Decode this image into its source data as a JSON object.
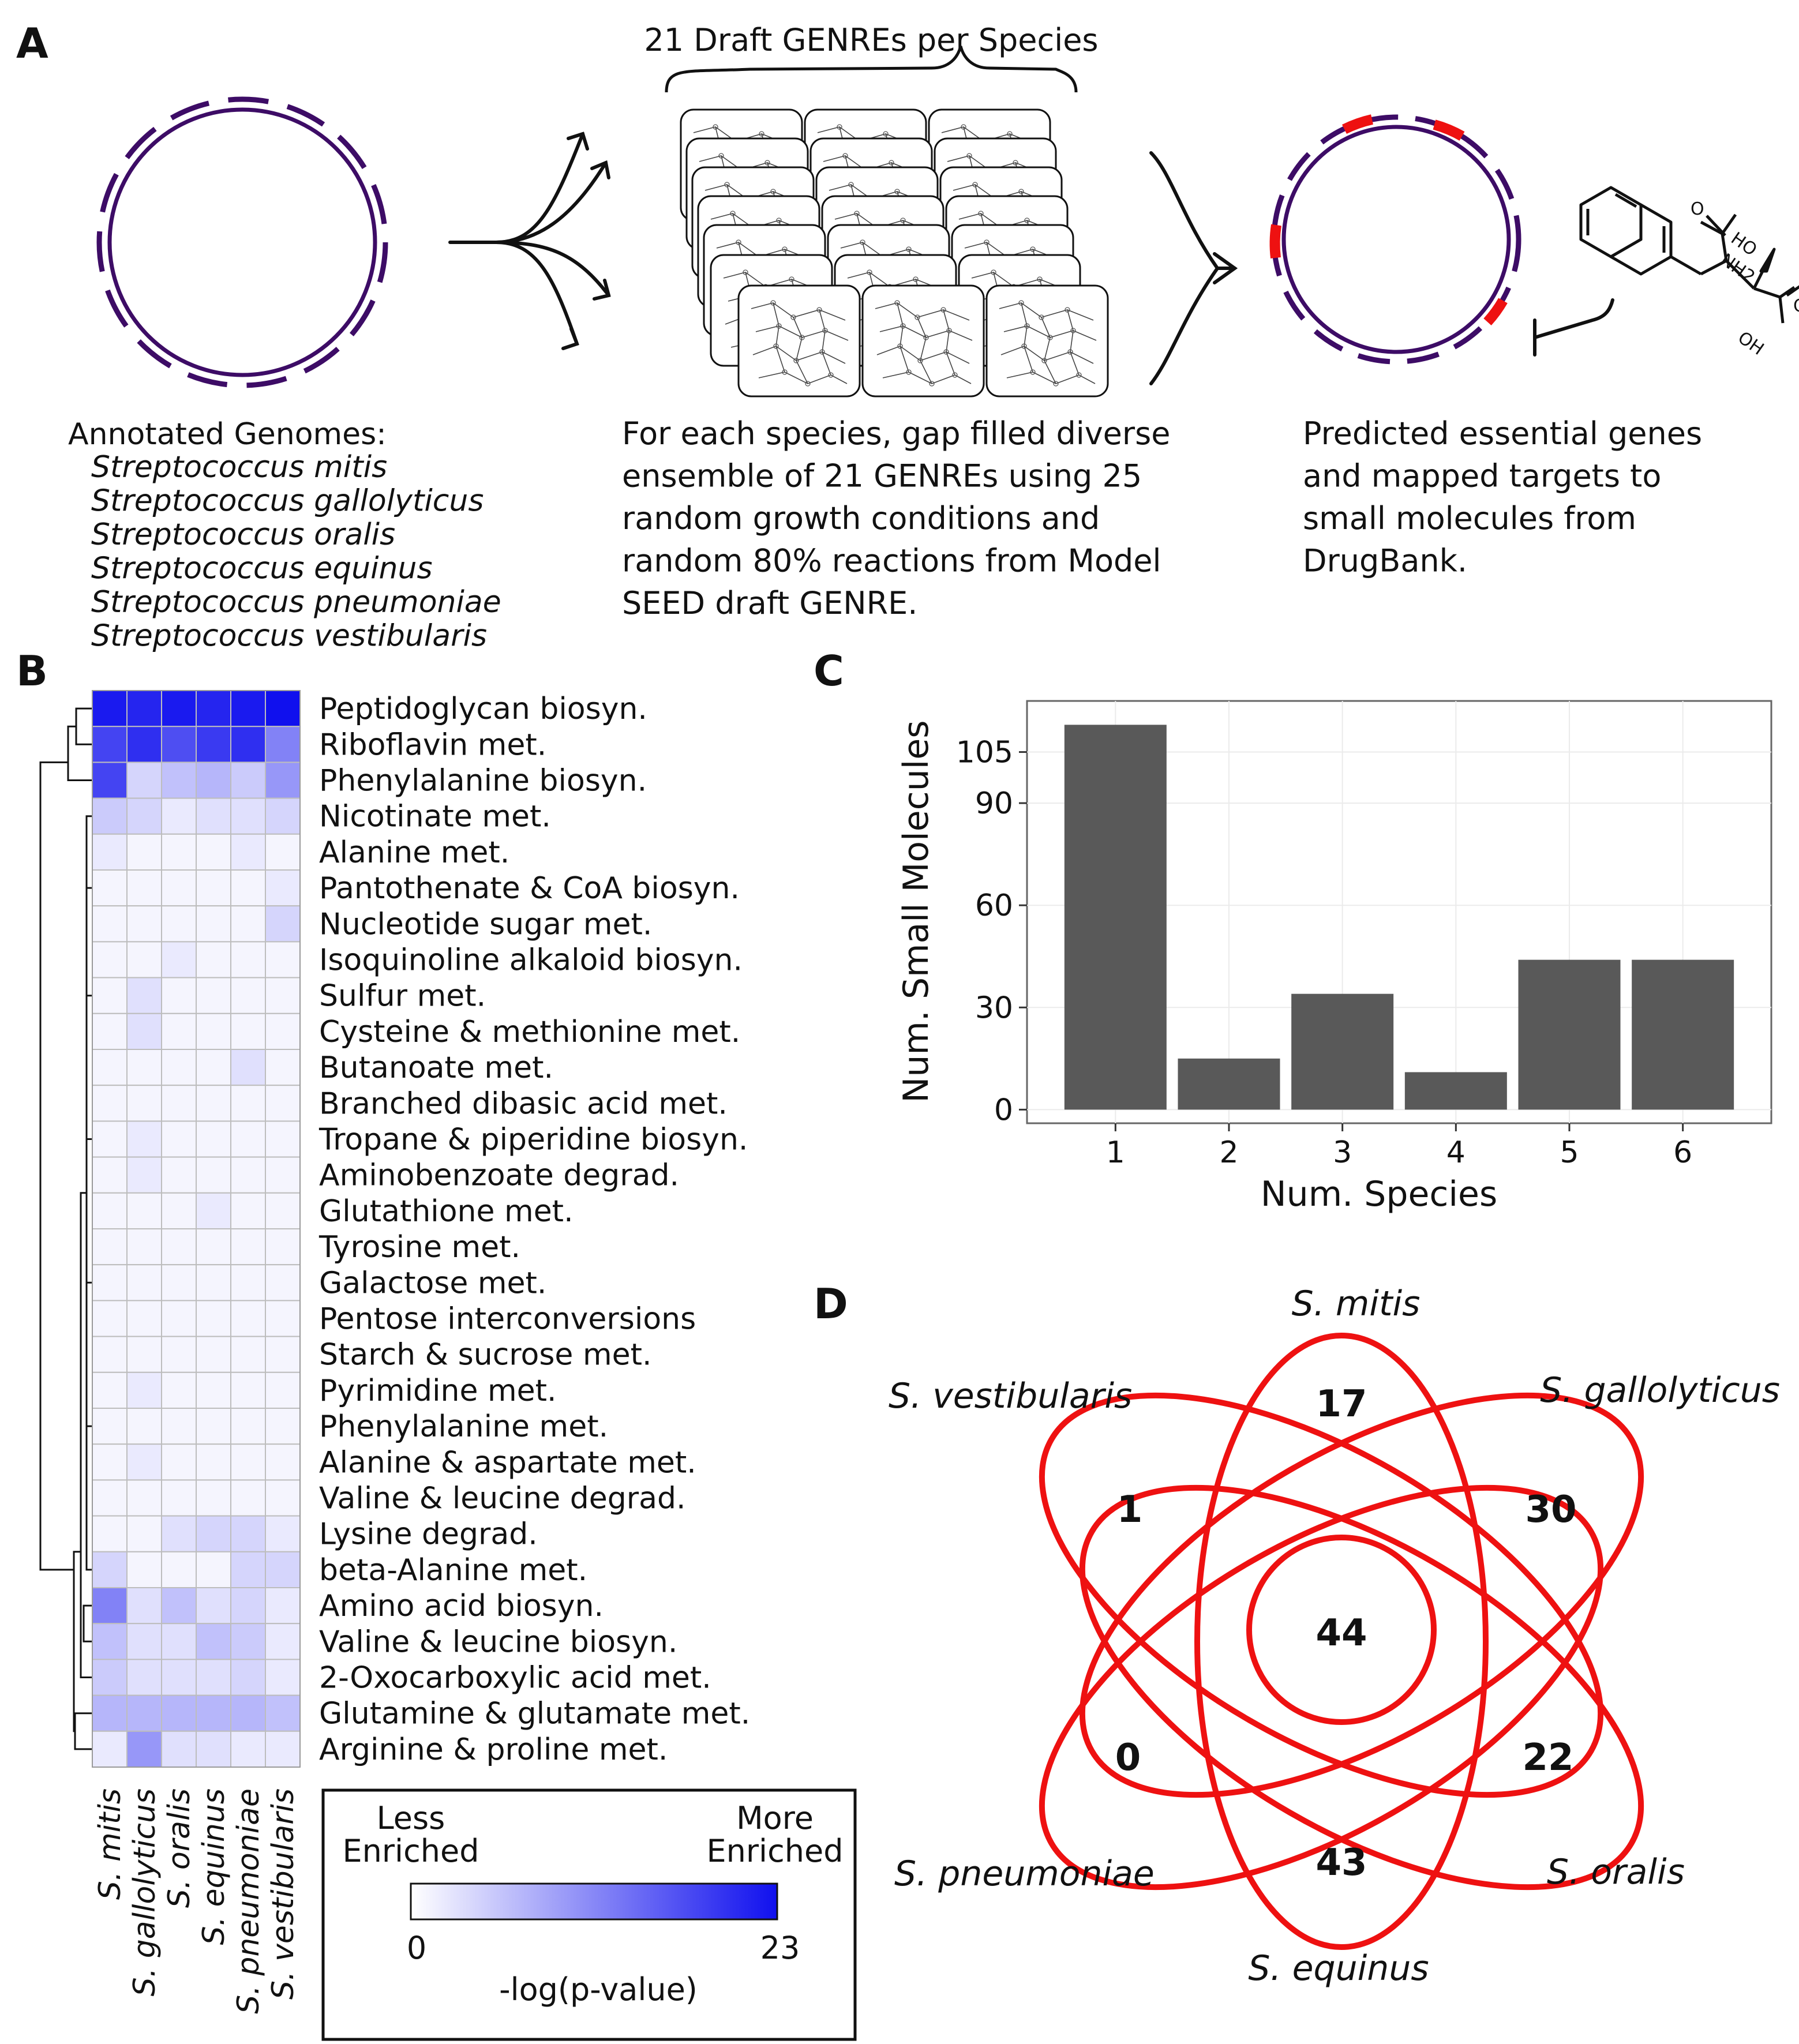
{
  "panel_labels": {
    "a": "A",
    "b": "B",
    "c": "C",
    "d": "D"
  },
  "panel_a": {
    "bracket_title": "21 Draft GENREs per Species",
    "genomes_heading": "Annotated Genomes:",
    "genome_list": [
      "Streptococcus mitis",
      "Streptococcus gallolyticus",
      "Streptococcus oralis",
      "Streptococcus equinus",
      "Streptococcus pneumoniae",
      "Streptococcus vestibularis"
    ],
    "method_text": [
      "For each species, gap filled diverse",
      "ensemble of 21 GENREs using 25",
      "random growth conditions and",
      "random 80% reactions from Model",
      "SEED draft GENRE."
    ],
    "result_text": [
      "Predicted essential genes",
      "and mapped targets to",
      "small molecules from",
      "DrugBank."
    ],
    "molecule_labels": {
      "ho": "HO",
      "nh2": "NH2",
      "oh": "OH"
    },
    "colors": {
      "genome": "#3d0c66",
      "essential": "#ee1111",
      "arrow": "#111111"
    }
  },
  "panel_b": {
    "pathways": [
      "Peptidoglycan biosyn.",
      "Riboflavin met.",
      "Phenylalanine biosyn.",
      "Nicotinate met.",
      "Alanine met.",
      "Pantothenate & CoA biosyn.",
      "Nucleotide sugar met.",
      "Isoquinoline alkaloid biosyn.",
      "Sulfur met.",
      "Cysteine & methionine met.",
      "Butanoate met.",
      "Branched dibasic acid met.",
      "Tropane & piperidine biosyn.",
      "Aminobenzoate degrad.",
      "Glutathione met.",
      "Tyrosine met.",
      "Galactose met.",
      "Pentose interconversions",
      "Starch & sucrose met.",
      "Pyrimidine met.",
      "Phenylalanine met.",
      "Alanine & aspartate met.",
      "Valine & leucine degrad.",
      "Lysine degrad.",
      "beta-Alanine met.",
      "Amino acid biosyn.",
      "Valine & leucine biosyn.",
      "2-Oxocarboxylic acid met.",
      "Glutamine & glutamate met.",
      "Arginine & proline met."
    ],
    "species": [
      "S. mitis",
      "S. gallolyticus",
      "S. oralis",
      "S. equinus",
      "S. pneumoniae",
      "S. vestibularis"
    ],
    "values": [
      [
        22,
        21,
        22,
        21,
        22,
        23
      ],
      [
        18,
        20,
        17,
        19,
        20,
        12
      ],
      [
        18,
        4,
        6,
        7,
        5,
        10
      ],
      [
        5,
        4,
        2,
        3,
        3,
        4
      ],
      [
        2,
        1,
        1,
        1,
        2,
        1
      ],
      [
        1,
        1,
        1,
        1,
        1,
        2
      ],
      [
        1,
        1,
        1,
        1,
        1,
        4
      ],
      [
        1,
        1,
        2,
        1,
        1,
        1
      ],
      [
        1,
        3,
        1,
        1,
        1,
        1
      ],
      [
        1,
        3,
        1,
        1,
        1,
        1
      ],
      [
        1,
        1,
        1,
        1,
        3,
        1
      ],
      [
        1,
        1,
        1,
        1,
        1,
        1
      ],
      [
        1,
        2,
        1,
        1,
        1,
        1
      ],
      [
        1,
        2,
        1,
        1,
        1,
        1
      ],
      [
        1,
        1,
        1,
        2,
        1,
        1
      ],
      [
        1,
        1,
        1,
        1,
        1,
        1
      ],
      [
        1,
        1,
        1,
        1,
        1,
        1
      ],
      [
        1,
        1,
        1,
        1,
        1,
        1
      ],
      [
        1,
        1,
        1,
        1,
        1,
        1
      ],
      [
        1,
        2,
        1,
        1,
        1,
        1
      ],
      [
        1,
        1,
        1,
        1,
        1,
        1
      ],
      [
        1,
        2,
        1,
        1,
        1,
        1
      ],
      [
        1,
        1,
        1,
        1,
        1,
        1
      ],
      [
        1,
        1,
        3,
        4,
        4,
        2
      ],
      [
        4,
        1,
        1,
        1,
        4,
        4
      ],
      [
        12,
        3,
        6,
        3,
        4,
        2
      ],
      [
        6,
        3,
        3,
        6,
        5,
        2
      ],
      [
        5,
        3,
        3,
        3,
        4,
        2
      ],
      [
        7,
        7,
        7,
        7,
        7,
        6
      ],
      [
        2,
        10,
        3,
        3,
        2,
        2
      ]
    ],
    "color_scale": {
      "min": 0,
      "max": 23,
      "low": "#ffffff",
      "high": "#1010ee"
    },
    "legend": {
      "less_line1": "Less",
      "less_line2": "Enriched",
      "more_line1": "More",
      "more_line2": "Enriched",
      "tick_min": "0",
      "tick_max": "23",
      "title": "-log(p-value)"
    }
  },
  "chart_data": [
    {
      "type": "bar",
      "categories": [
        "1",
        "2",
        "3",
        "4",
        "5",
        "6"
      ],
      "values": [
        113,
        15,
        34,
        11,
        44,
        44
      ],
      "xlabel": "Num. Species",
      "ylabel": "Num. Small Molecules",
      "yticks": [
        0,
        30,
        60,
        90,
        105
      ],
      "ylim": [
        -4,
        120
      ],
      "grid": true,
      "bar_color": "#595959",
      "panel_background": "#ffffff"
    },
    {
      "type": "venn",
      "sets": [
        "S. mitis",
        "S. gallolyticus",
        "S. oralis",
        "S. equinus",
        "S. pneumoniae",
        "S. vestibularis"
      ],
      "region_values": [
        {
          "set": "S. mitis",
          "value": "17"
        },
        {
          "set": "S. gallolyticus",
          "value": "30"
        },
        {
          "set": "S. oralis",
          "value": "22"
        },
        {
          "set": "S. equinus",
          "value": "43"
        },
        {
          "set": "S. pneumoniae",
          "value": "0"
        },
        {
          "set": "S. vestibularis",
          "value": "1"
        },
        {
          "set": "all",
          "value": "44"
        }
      ],
      "color": "#ee1111"
    }
  ]
}
